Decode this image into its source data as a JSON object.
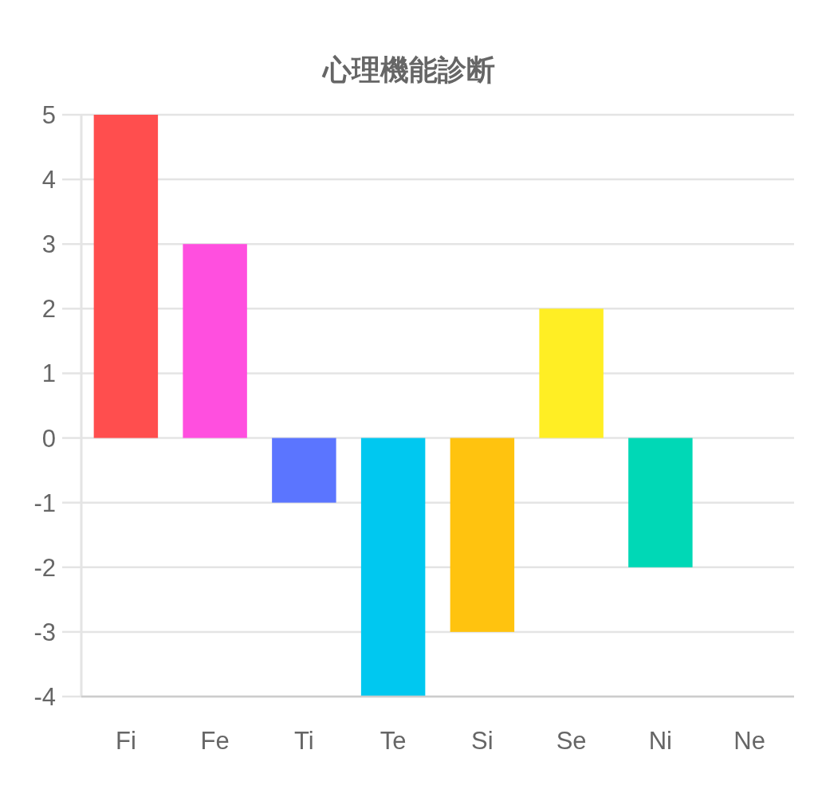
{
  "chart_data": {
    "type": "bar",
    "title": "心理機能診断",
    "categories": [
      "Fi",
      "Fe",
      "Ti",
      "Te",
      "Si",
      "Se",
      "Ni",
      "Ne"
    ],
    "values": [
      5,
      3,
      -1,
      -4,
      -3,
      2,
      -2,
      0
    ],
    "colors": [
      "#ff4e4e",
      "#ff4fdf",
      "#5b75ff",
      "#00c8f0",
      "#ffc30f",
      "#ffee24",
      "#00d8b6",
      null
    ],
    "ylim": [
      -4,
      5
    ],
    "yticks": [
      5,
      4,
      3,
      2,
      1,
      0,
      -1,
      -2,
      -3,
      -4
    ],
    "grid": "y"
  }
}
